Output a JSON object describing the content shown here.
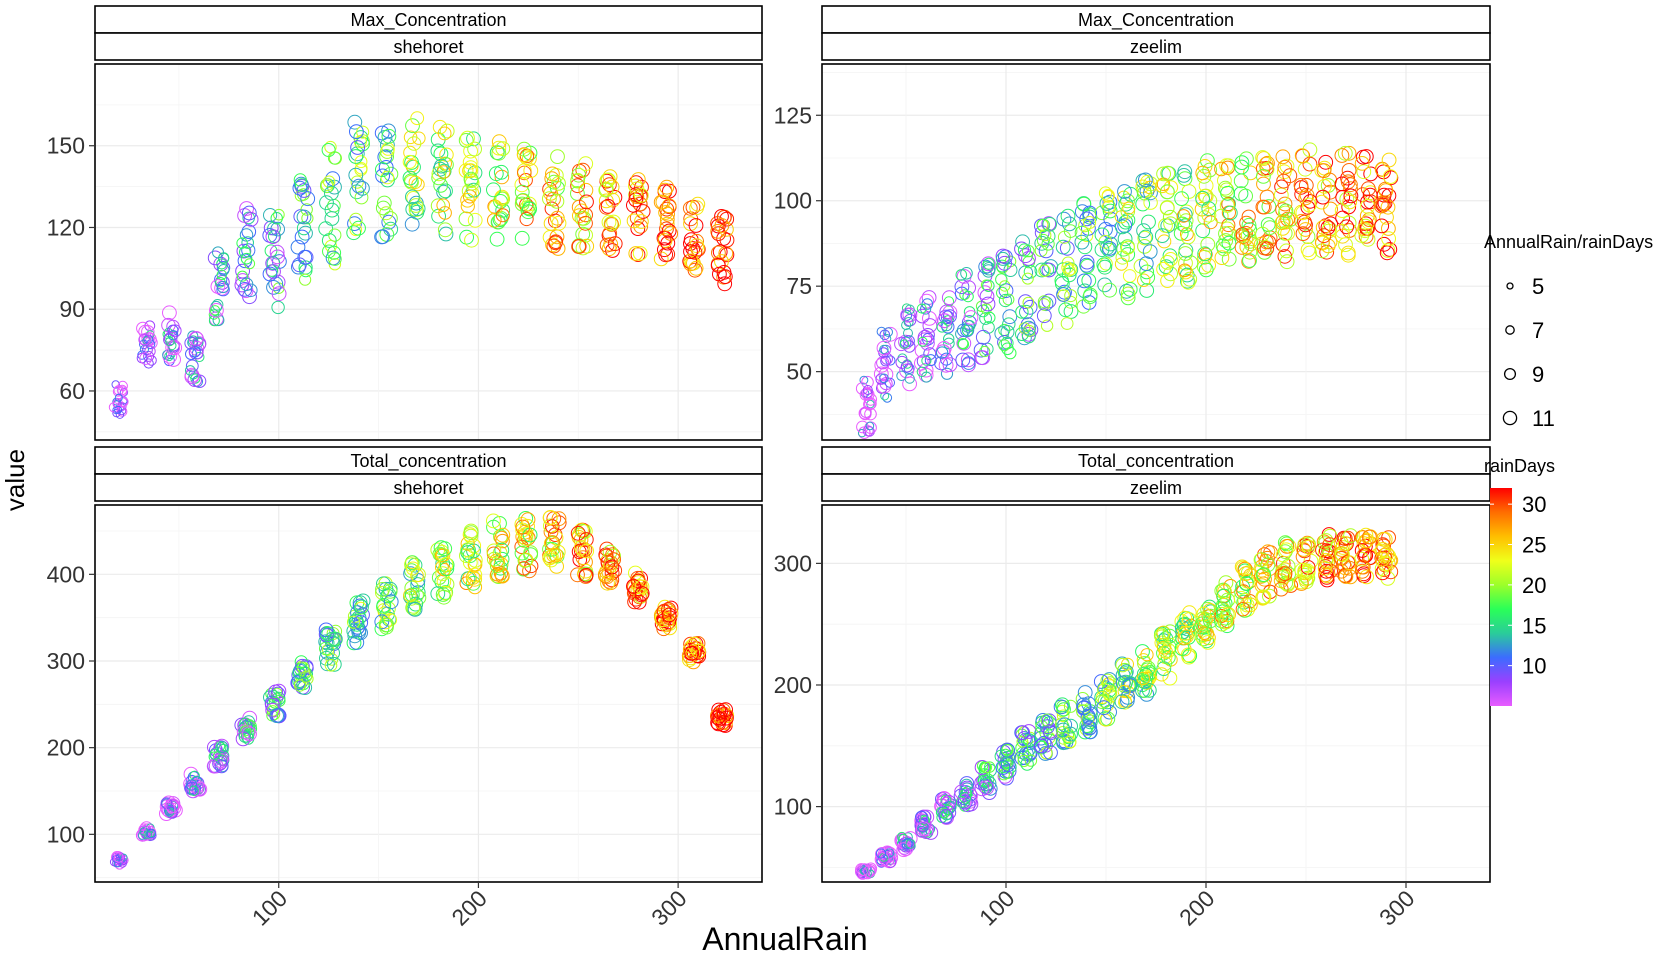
{
  "chart_data": {
    "type": "scatter",
    "xlabel": "AnnualRain",
    "ylabel": "value",
    "x_ticks": [
      "100",
      "200",
      "300"
    ],
    "grid": true,
    "panels": [
      {
        "strip_top": "Max_Concentration",
        "strip_bottom": "shehoret",
        "y_ticks": [
          "60",
          "90",
          "120",
          "150"
        ],
        "ylim": [
          42,
          180
        ],
        "series": [
          {
            "x": [
              20,
              34,
              46,
              58,
              70,
              84,
              98,
              112,
              126,
              140,
              154,
              168,
              182,
              196,
              210,
              224,
              238,
              252,
              266,
              280,
              294,
              308,
              322
            ],
            "y": [
              57,
              76,
              80,
              72,
              100,
              112,
              108,
              120,
              128,
              140,
              138,
              140,
              137,
              135,
              133,
              132,
              130,
              128,
              124,
              124,
              122,
              117,
              112
            ],
            "spread": [
              7,
              8,
              9,
              9,
              15,
              18,
              18,
              20,
              22,
              22,
              22,
              22,
              20,
              20,
              20,
              18,
              18,
              16,
              15,
              14,
              14,
              13,
              13
            ]
          }
        ]
      },
      {
        "strip_top": "Max_Concentration",
        "strip_bottom": "zeelim",
        "y_ticks": [
          "50",
          "75",
          "100",
          "125"
        ],
        "ylim": [
          30,
          140
        ],
        "series": [
          {
            "x": [
              30,
              40,
              50,
              60,
              70,
              80,
              90,
              100,
              110,
              120,
              130,
              140,
              150,
              160,
              170,
              180,
              190,
              200,
              210,
              220,
              230,
              240,
              250,
              260,
              270,
              280,
              290
            ],
            "y": [
              40,
              52,
              58,
              60,
              62,
              65,
              68,
              70,
              74,
              78,
              80,
              83,
              86,
              88,
              90,
              92,
              93,
              95,
              96,
              97,
              98,
              98,
              99,
              99,
              99,
              99,
              98
            ],
            "spread": [
              8,
              10,
              12,
              12,
              13,
              14,
              14,
              15,
              15,
              16,
              16,
              17,
              17,
              17,
              17,
              17,
              17,
              17,
              16,
              16,
              16,
              16,
              16,
              15,
              15,
              14,
              14
            ]
          }
        ]
      },
      {
        "strip_top": "Total_concentration",
        "strip_bottom": "shehoret",
        "y_ticks": [
          "100",
          "200",
          "300",
          "400"
        ],
        "ylim": [
          45,
          480
        ],
        "series": [
          {
            "x": [
              20,
              34,
              46,
              58,
              70,
              84,
              98,
              112,
              126,
              140,
              154,
              168,
              182,
              196,
              210,
              224,
              238,
              252,
              266,
              280,
              294,
              308,
              322
            ],
            "y": [
              70,
              103,
              130,
              160,
              190,
              222,
              252,
              285,
              315,
              345,
              365,
              385,
              405,
              420,
              430,
              435,
              435,
              425,
              410,
              385,
              350,
              310,
              235
            ],
            "spread": [
              5,
              5,
              8,
              10,
              12,
              14,
              16,
              18,
              22,
              25,
              28,
              30,
              32,
              35,
              35,
              35,
              32,
              28,
              22,
              18,
              14,
              12,
              10
            ]
          }
        ]
      },
      {
        "strip_top": "Total_concentration",
        "strip_bottom": "zeelim",
        "y_ticks": [
          "100",
          "200",
          "300"
        ],
        "ylim": [
          38,
          348
        ],
        "series": [
          {
            "x": [
              30,
              40,
              50,
              60,
              70,
              80,
              90,
              100,
              110,
              120,
              130,
              140,
              150,
              160,
              170,
              180,
              190,
              200,
              210,
              220,
              230,
              240,
              250,
              260,
              270,
              280,
              290
            ],
            "y": [
              47,
              58,
              70,
              85,
              98,
              110,
              122,
              135,
              148,
              158,
              168,
              178,
              188,
              200,
              212,
              225,
              240,
              255,
              268,
              280,
              290,
              298,
              302,
              305,
              306,
              306,
              305
            ],
            "spread": [
              3,
              4,
              6,
              7,
              9,
              10,
              12,
              13,
              14,
              15,
              16,
              17,
              18,
              19,
              20,
              20,
              20,
              20,
              20,
              20,
              20,
              20,
              20,
              20,
              18,
              18,
              18
            ]
          }
        ]
      }
    ],
    "size_legend": {
      "title": "AnnualRain/rainDays",
      "values": [
        "5",
        "7",
        "9",
        "11"
      ]
    },
    "color_legend": {
      "title": "rainDays",
      "values": [
        "30",
        "25",
        "20",
        "15",
        "10"
      ],
      "range": [
        5,
        32
      ],
      "colors": [
        "#e85cff",
        "#9a40ff",
        "#3c6cff",
        "#2acc9a",
        "#2aff58",
        "#9cff2a",
        "#f0ff1a",
        "#ffbe00",
        "#ff6d00",
        "#ff0000"
      ]
    }
  }
}
